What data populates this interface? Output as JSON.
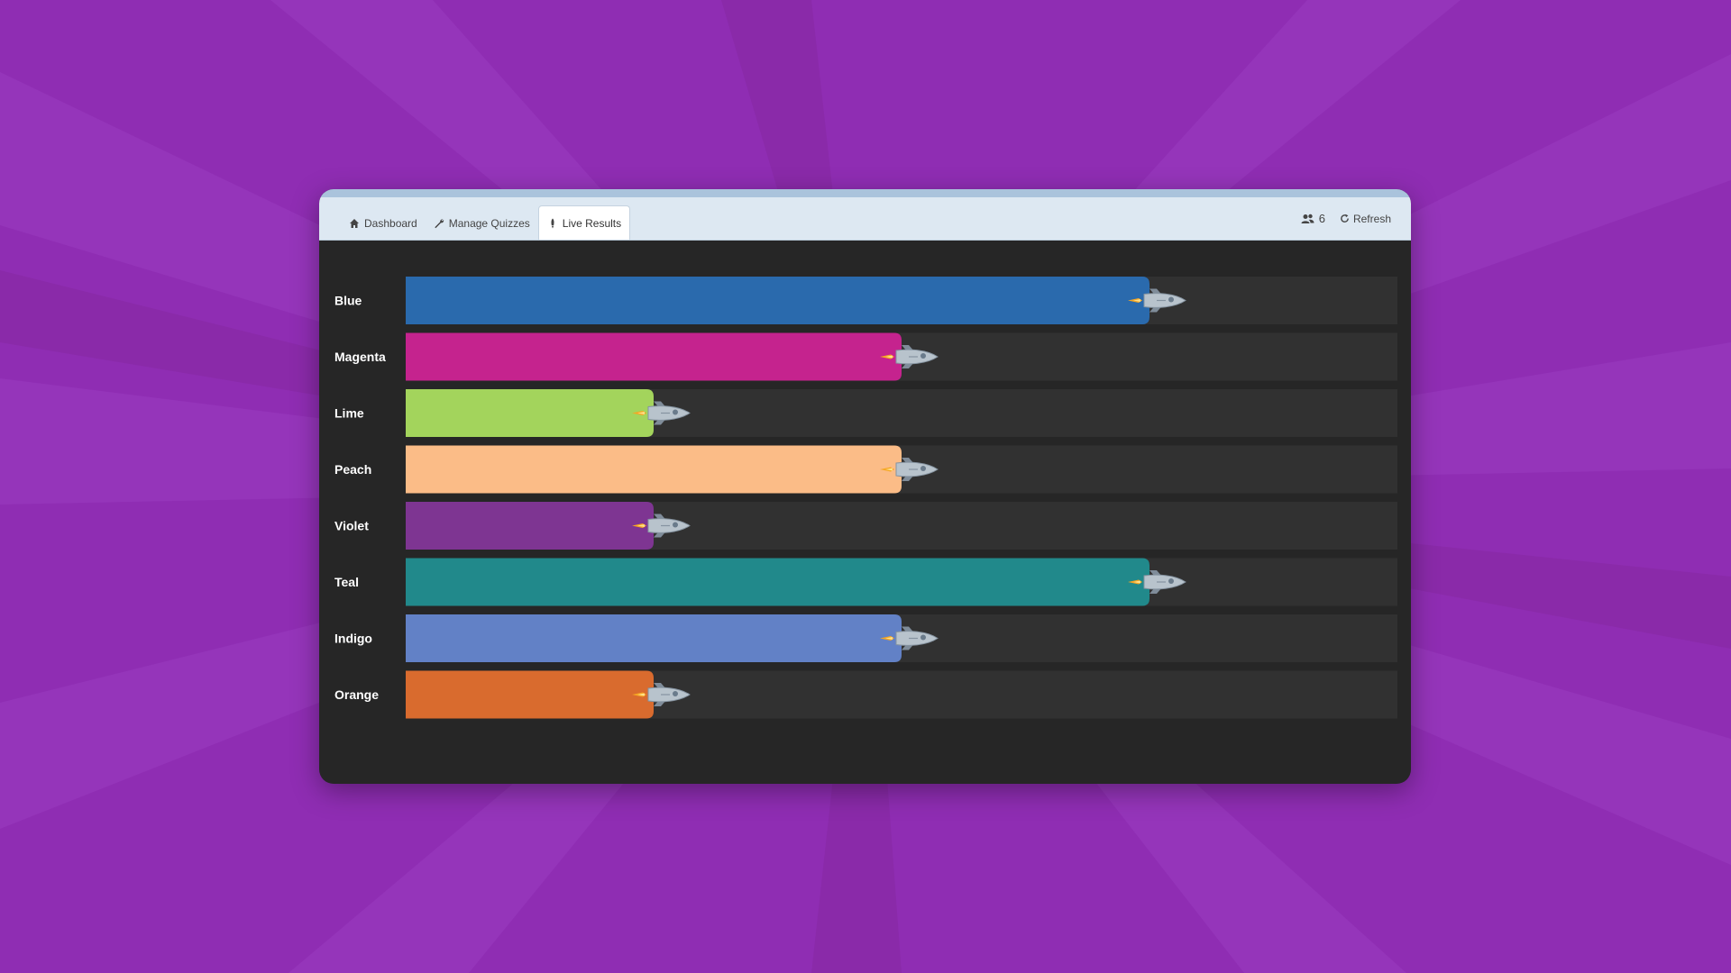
{
  "nav": {
    "tabs": [
      {
        "label": "Dashboard",
        "icon": "home-icon",
        "active": false
      },
      {
        "label": "Manage Quizzes",
        "icon": "wrench-icon",
        "active": false
      },
      {
        "label": "Live Results",
        "icon": "rocket-icon",
        "active": true
      }
    ],
    "users_count": "6",
    "refresh_label": "Refresh"
  },
  "colors": {
    "background": "#8f2db3",
    "panel": "#262626",
    "track": "#313131",
    "navbar": "#dde8f2"
  },
  "chart_data": {
    "type": "bar",
    "orientation": "horizontal",
    "categories": [
      "Blue",
      "Magenta",
      "Lime",
      "Peach",
      "Violet",
      "Teal",
      "Indigo",
      "Orange"
    ],
    "values": [
      0.75,
      0.5,
      0.25,
      0.5,
      0.25,
      0.75,
      0.5,
      0.25
    ],
    "colors": [
      "#2a6aad",
      "#c5238e",
      "#a3d45c",
      "#fbbc87",
      "#7e3592",
      "#21898b",
      "#6281c6",
      "#d96b2e"
    ],
    "ylim": [
      0,
      1
    ],
    "marker": "rocket-icon",
    "title": "",
    "xlabel": "",
    "ylabel": ""
  }
}
